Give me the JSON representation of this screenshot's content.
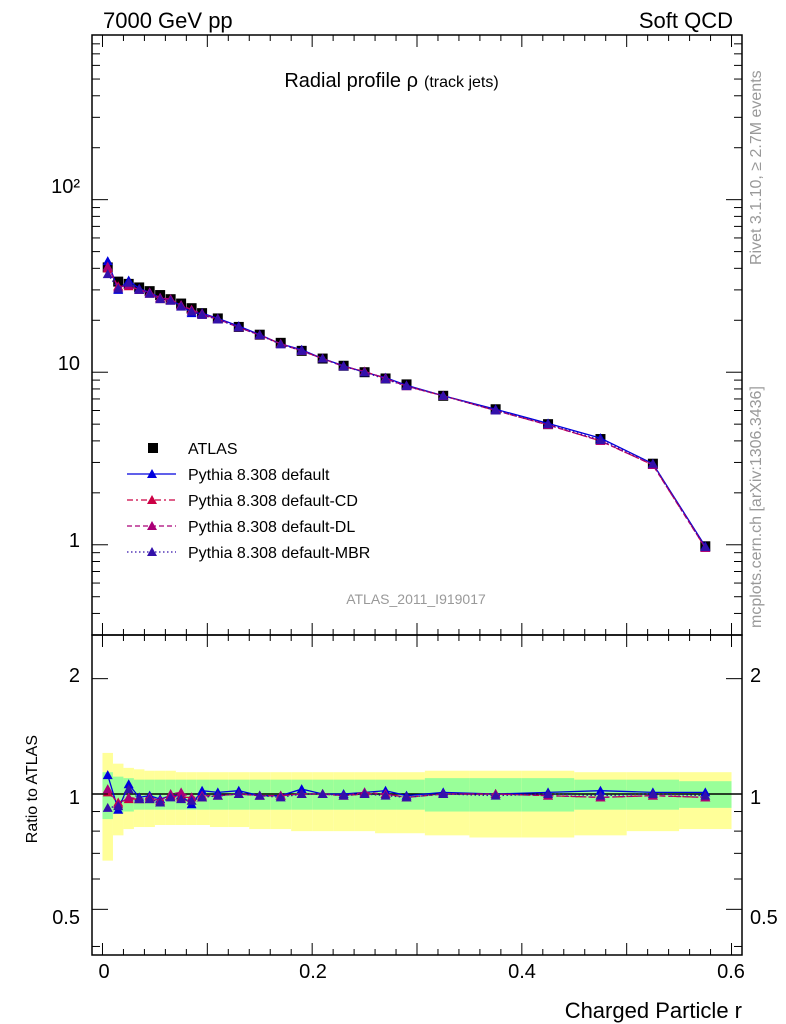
{
  "header": {
    "left": "7000 GeV pp",
    "right": "Soft QCD"
  },
  "title": {
    "main": "Radial profile ρ",
    "sub": "(track jets)"
  },
  "side_text": {
    "rivet": "Rivet 3.1.10, ≥ 2.7M events",
    "source": "mcplots.cern.ch [arXiv:1306.3436]"
  },
  "watermark": "ATLAS_2011_I919017",
  "legend": [
    {
      "label": "ATLAS",
      "color": "#000000",
      "style": "data"
    },
    {
      "label": "Pythia 8.308 default",
      "color": "#0000dd",
      "style": "solid"
    },
    {
      "label": "Pythia 8.308 default-CD",
      "color": "#cc0044",
      "style": "dashdot"
    },
    {
      "label": "Pythia 8.308 default-DL",
      "color": "#aa0077",
      "style": "dashed"
    },
    {
      "label": "Pythia 8.308 default-MBR",
      "color": "#3311aa",
      "style": "dotted"
    }
  ],
  "axes": {
    "xlabel": "Charged Particle r",
    "ratio_ylabel": "Ratio to ATLAS",
    "x_ticks": [
      "0",
      "0.2",
      "0.4",
      "0.6"
    ],
    "main_y_ticks": [
      "1",
      "10",
      "10²"
    ],
    "ratio_y_ticks": [
      "0.5",
      "1",
      "2"
    ]
  },
  "chart_data": {
    "type": "line",
    "x": [
      0.005,
      0.015,
      0.025,
      0.035,
      0.045,
      0.055,
      0.065,
      0.075,
      0.085,
      0.095,
      0.11,
      0.13,
      0.15,
      0.17,
      0.19,
      0.21,
      0.23,
      0.25,
      0.27,
      0.29,
      0.325,
      0.375,
      0.425,
      0.475,
      0.525,
      0.575
    ],
    "xlim": [
      -0.01,
      0.61
    ],
    "main": {
      "yscale": "log",
      "ylim": [
        0.3,
        900
      ],
      "series": [
        {
          "name": "ATLAS",
          "values": [
            40.5,
            33.5,
            32.5,
            31.0,
            29.5,
            28.0,
            26.5,
            25.0,
            23.5,
            22.0,
            20.5,
            18.3,
            16.5,
            14.8,
            13.3,
            12.0,
            10.9,
            10.0,
            9.2,
            8.5,
            7.3,
            6.1,
            5.0,
            4.1,
            2.95,
            0.98
          ]
        },
        {
          "name": "Pythia 8.308 default",
          "values": [
            44.0,
            30.0,
            34.0,
            30.5,
            29.0,
            27.0,
            26.0,
            24.5,
            22.0,
            22.0,
            20.5,
            18.5,
            16.5,
            14.6,
            13.5,
            12.0,
            10.9,
            10.0,
            9.3,
            8.4,
            7.3,
            6.1,
            5.05,
            4.15,
            2.95,
            0.98
          ]
        },
        {
          "name": "Pythia 8.308 default-CD",
          "values": [
            40.0,
            31.5,
            31.5,
            30.0,
            28.5,
            26.5,
            26.0,
            24.3,
            23.0,
            21.5,
            20.3,
            18.2,
            16.4,
            14.6,
            13.3,
            12.0,
            10.8,
            10.1,
            9.2,
            8.3,
            7.3,
            6.0,
            4.95,
            4.0,
            2.9,
            0.96
          ]
        },
        {
          "name": "Pythia 8.308 default-DL",
          "values": [
            41.0,
            31.0,
            32.0,
            30.0,
            29.0,
            27.0,
            26.5,
            24.5,
            23.0,
            21.8,
            20.3,
            18.2,
            16.4,
            14.6,
            13.3,
            12.0,
            10.8,
            10.1,
            9.2,
            8.3,
            7.3,
            6.0,
            4.95,
            4.0,
            2.9,
            0.96
          ]
        },
        {
          "name": "Pythia 8.308 default-MBR",
          "values": [
            37.0,
            30.5,
            33.0,
            30.0,
            28.5,
            26.5,
            26.0,
            24.0,
            22.5,
            21.5,
            20.2,
            18.2,
            16.4,
            14.5,
            13.3,
            12.0,
            10.8,
            10.0,
            9.1,
            8.3,
            7.3,
            6.0,
            5.0,
            4.05,
            2.95,
            0.97
          ]
        }
      ]
    },
    "ratio": {
      "yscale": "log",
      "ylim": [
        0.38,
        2.6
      ],
      "series": [
        {
          "name": "Pythia 8.308 default",
          "values": [
            1.12,
            0.91,
            1.06,
            0.98,
            0.99,
            0.97,
            0.99,
            0.99,
            0.94,
            1.02,
            1.01,
            1.02,
            0.99,
            0.99,
            1.03,
            1.0,
            1.0,
            1.01,
            1.02,
            0.99,
            1.01,
            1.0,
            1.01,
            1.02,
            1.01,
            1.01
          ]
        },
        {
          "name": "Pythia 8.308 default-CD",
          "values": [
            1.01,
            0.95,
            0.97,
            0.97,
            0.97,
            0.95,
            0.99,
            0.98,
            0.98,
            0.98,
            0.99,
            1.0,
            0.99,
            0.99,
            1.0,
            1.0,
            0.99,
            1.0,
            1.0,
            0.98,
            1.0,
            1.0,
            0.99,
            0.98,
            0.99,
            0.98
          ]
        },
        {
          "name": "Pythia 8.308 default-DL",
          "values": [
            1.03,
            0.94,
            0.98,
            0.97,
            0.98,
            0.96,
            1.0,
            1.01,
            0.98,
            0.99,
            0.99,
            1.0,
            0.99,
            0.99,
            1.0,
            1.0,
            0.99,
            1.01,
            1.0,
            0.98,
            1.0,
            1.0,
            0.99,
            0.98,
            0.99,
            0.98
          ]
        },
        {
          "name": "Pythia 8.308 default-MBR",
          "values": [
            0.92,
            0.93,
            1.03,
            0.97,
            0.97,
            0.95,
            0.98,
            0.97,
            0.96,
            0.98,
            0.99,
            1.0,
            0.99,
            0.98,
            1.0,
            1.0,
            0.99,
            1.0,
            0.99,
            0.98,
            1.0,
            0.99,
            1.0,
            0.99,
            1.0,
            0.99
          ]
        }
      ],
      "band_stat_lo": [
        0.86,
        0.89,
        0.9,
        0.91,
        0.91,
        0.91,
        0.91,
        0.91,
        0.91,
        0.91,
        0.91,
        0.91,
        0.91,
        0.91,
        0.91,
        0.91,
        0.91,
        0.91,
        0.91,
        0.91,
        0.9,
        0.9,
        0.9,
        0.91,
        0.91,
        0.92
      ],
      "band_stat_hi": [
        1.14,
        1.11,
        1.1,
        1.09,
        1.09,
        1.09,
        1.09,
        1.09,
        1.09,
        1.09,
        1.09,
        1.09,
        1.09,
        1.09,
        1.09,
        1.09,
        1.09,
        1.09,
        1.09,
        1.09,
        1.1,
        1.1,
        1.1,
        1.09,
        1.09,
        1.08
      ],
      "band_tot_lo": [
        0.67,
        0.78,
        0.81,
        0.82,
        0.82,
        0.83,
        0.83,
        0.83,
        0.83,
        0.83,
        0.82,
        0.82,
        0.81,
        0.81,
        0.8,
        0.8,
        0.8,
        0.8,
        0.79,
        0.79,
        0.78,
        0.77,
        0.77,
        0.78,
        0.8,
        0.81
      ],
      "band_tot_hi": [
        1.28,
        1.2,
        1.17,
        1.16,
        1.15,
        1.15,
        1.15,
        1.14,
        1.14,
        1.14,
        1.14,
        1.14,
        1.14,
        1.14,
        1.14,
        1.14,
        1.14,
        1.14,
        1.14,
        1.14,
        1.15,
        1.15,
        1.15,
        1.14,
        1.14,
        1.14
      ],
      "band_colors": {
        "stat": "#99ff99",
        "total": "#ffff99"
      }
    }
  }
}
